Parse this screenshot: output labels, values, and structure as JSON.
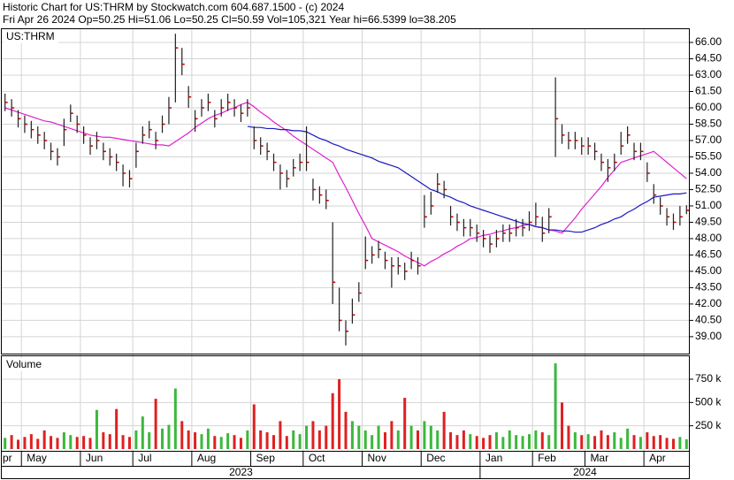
{
  "header": {
    "line1": "Historic Chart for US:THRM by Stockwatch.com 604.687.1500 - (c) 2024",
    "line2": "Fri Apr 26 2024   Op=50.25  Hi=51.06  Lo=50.25  Cl=50.59  Vol=105,321   Year hi=66.5399  lo=38.205"
  },
  "chart_data": {
    "type": "ohlc",
    "symbol_label": "US:THRM",
    "categories": [
      "pr",
      null,
      null,
      "May",
      null,
      null,
      null,
      null,
      null,
      null,
      null,
      null,
      "Jun",
      null,
      null,
      null,
      null,
      null,
      null,
      null,
      "Jul",
      null,
      null,
      null,
      null,
      null,
      null,
      null,
      null,
      "Aug",
      null,
      null,
      null,
      null,
      null,
      null,
      null,
      null,
      "Sep",
      null,
      null,
      null,
      null,
      null,
      null,
      null,
      "Oct",
      null,
      null,
      null,
      null,
      null,
      null,
      null,
      null,
      "Nov",
      null,
      null,
      null,
      null,
      null,
      null,
      null,
      null,
      "Dec",
      null,
      null,
      null,
      null,
      null,
      null,
      null,
      null,
      "Jan",
      null,
      null,
      null,
      null,
      null,
      null,
      null,
      "Feb",
      null,
      null,
      null,
      null,
      null,
      null,
      null,
      "Mar",
      null,
      null,
      null,
      null,
      null,
      null,
      null,
      null,
      "Apr",
      null,
      null,
      null,
      null,
      null,
      null
    ],
    "year_labels": [
      "2023",
      "2024"
    ],
    "high": [
      61.3,
      60.8,
      59.8,
      59.3,
      58.8,
      58.3,
      57.8,
      56.8,
      56.3,
      59,
      60.3,
      59.3,
      58.3,
      57.3,
      57.8,
      56.8,
      56.3,
      55.8,
      54.8,
      54.3,
      56.8,
      58.3,
      58.8,
      57.8,
      59.3,
      61,
      66.8,
      65.5,
      62,
      59.8,
      60.8,
      61.3,
      59.8,
      60.8,
      61.3,
      60.8,
      60.3,
      60.8,
      58.3,
      57.3,
      56.8,
      55.8,
      54.8,
      54.3,
      55.3,
      55.8,
      58.3,
      53.5,
      52.8,
      52.5,
      49.5,
      43.5,
      40.5,
      42.5,
      44,
      48.2,
      47.3,
      47.8,
      46.8,
      46.3,
      46.3,
      45.8,
      46.8,
      46.3,
      52,
      52.3,
      54,
      53.3,
      51,
      50.3,
      49.8,
      49.8,
      49.3,
      48.8,
      48.3,
      48.8,
      49.3,
      49.3,
      49.8,
      49.8,
      50.5,
      51.3,
      50,
      50.8,
      62.8,
      58.5,
      57.8,
      57.8,
      57.3,
      57.3,
      56.8,
      55.8,
      55.3,
      55.8,
      57.8,
      58.3,
      56.8,
      56.8,
      55,
      53,
      51.8,
      50.8,
      50.3,
      51,
      51.06
    ],
    "low": [
      59.7,
      59.2,
      58.2,
      57.7,
      57.2,
      56.7,
      56.2,
      55.2,
      54.7,
      56.5,
      58.7,
      57.7,
      56.7,
      55.7,
      56.2,
      55.2,
      54.7,
      54.2,
      52.8,
      52.7,
      54.5,
      56.7,
      57.2,
      56.2,
      57.7,
      58.5,
      60.5,
      63,
      60,
      57.8,
      59.2,
      59.7,
      58.2,
      59.2,
      59.7,
      59.2,
      58.7,
      59.2,
      56.2,
      55.7,
      55.2,
      54.2,
      52.5,
      52.7,
      53.7,
      54.2,
      54.2,
      51.5,
      51.2,
      50.7,
      42,
      39.5,
      38.2,
      40.2,
      42.2,
      45.2,
      45.7,
      46.2,
      45.2,
      43.5,
      44.7,
      44.2,
      45.2,
      44.7,
      49,
      50.2,
      52.2,
      51.7,
      49.2,
      48.7,
      48.2,
      48.2,
      47.7,
      47.2,
      46.7,
      47.2,
      47.7,
      47.7,
      48.2,
      48.2,
      48.7,
      49.2,
      47.7,
      48.5,
      55.5,
      56.7,
      56.2,
      56.2,
      55.7,
      55.7,
      55.2,
      54.2,
      53.2,
      54.2,
      55.7,
      56.7,
      55.2,
      55.2,
      53.2,
      51.2,
      50.2,
      49.2,
      48.8,
      49.2,
      50.25
    ],
    "close": [
      60.5,
      60,
      59,
      58.5,
      58,
      57.5,
      57,
      56,
      55.5,
      58,
      59.5,
      58.5,
      57.5,
      56.5,
      57,
      56,
      55.5,
      55,
      54,
      53.5,
      56,
      57.5,
      58,
      57,
      58.5,
      60,
      65.5,
      64,
      61,
      59,
      60,
      60.5,
      59,
      60,
      60.5,
      60,
      59.5,
      60,
      57,
      56.5,
      56,
      55,
      54,
      53.5,
      54.5,
      55,
      55,
      52.5,
      52,
      51.5,
      44,
      40.5,
      39.5,
      41,
      43,
      46,
      46.5,
      47,
      46,
      45.5,
      45.5,
      45,
      46,
      45.5,
      50,
      51,
      53,
      52.5,
      50,
      49.5,
      49,
      49,
      48.5,
      48,
      47.5,
      48,
      48.5,
      48.5,
      49,
      49,
      49.5,
      50,
      48.5,
      50,
      59,
      57.5,
      57,
      57,
      56.5,
      56.5,
      56,
      55,
      54.5,
      55,
      56.5,
      57.5,
      56,
      56,
      54,
      52,
      51,
      50,
      49.5,
      50,
      50.59
    ],
    "bar_color": "#202020",
    "close_color": "#c00000",
    "moving_averages": [
      {
        "color": "#e020d0",
        "values": [
          60,
          59.8,
          59.6,
          59.4,
          59.2,
          59.0,
          58.8,
          58.7,
          58.5,
          58.3,
          58.1,
          57.9,
          57.7,
          57.5,
          57.4,
          57.3,
          57.3,
          57.2,
          57.1,
          57.0,
          56.9,
          56.8,
          56.7,
          56.6,
          56.6,
          56.5,
          56.9,
          57.3,
          57.7,
          58.2,
          58.6,
          59.0,
          59.3,
          59.5,
          59.8,
          60.0,
          60.3,
          60.5,
          60.1,
          59.6,
          59.2,
          58.7,
          58.3,
          57.9,
          57.4,
          57.0,
          56.6,
          56.2,
          55.8,
          55.4,
          55.0,
          53.8,
          52.7,
          51.5,
          50.3,
          49.2,
          48.0,
          47.7,
          47.4,
          47.1,
          46.8,
          46.4,
          46.1,
          45.8,
          45.5,
          45.9,
          46.2,
          46.6,
          46.9,
          47.3,
          47.6,
          48.0,
          48.1,
          48.3,
          48.4,
          48.6,
          48.7,
          48.9,
          49.0,
          49.2,
          49.3,
          49.1,
          49.0,
          48.8,
          48.7,
          48.5,
          49.2,
          49.9,
          50.7,
          51.4,
          52.1,
          52.8,
          53.6,
          54.3,
          55.0,
          55.2,
          55.4,
          55.6,
          55.8,
          56.0,
          55.5,
          55.0,
          54.5,
          54.0,
          53.5
        ]
      },
      {
        "color": "#1818c0",
        "values": [
          null,
          null,
          null,
          null,
          null,
          null,
          null,
          null,
          null,
          null,
          null,
          null,
          null,
          null,
          null,
          null,
          null,
          null,
          null,
          null,
          null,
          null,
          null,
          null,
          null,
          null,
          null,
          null,
          null,
          null,
          null,
          null,
          null,
          null,
          null,
          null,
          null,
          58.3,
          58.2,
          58.2,
          58.1,
          58.1,
          58.0,
          58.0,
          57.9,
          57.9,
          57.8,
          57.5,
          57.2,
          57.0,
          56.7,
          56.5,
          56.2,
          56.0,
          55.8,
          55.6,
          55.4,
          55.1,
          54.9,
          54.7,
          54.5,
          54.1,
          53.7,
          53.3,
          52.9,
          52.5,
          52.3,
          52.0,
          51.8,
          51.5,
          51.3,
          51.0,
          50.8,
          50.6,
          50.4,
          50.2,
          50.0,
          49.8,
          49.6,
          49.4,
          49.3,
          49.1,
          49.0,
          48.8,
          48.8,
          48.7,
          48.7,
          48.6,
          48.6,
          48.8,
          49.0,
          49.3,
          49.5,
          49.8,
          50.0,
          50.4,
          50.7,
          51.1,
          51.4,
          51.8,
          51.9,
          52.0,
          52.1,
          52.1,
          52.2
        ]
      }
    ],
    "ylim": [
      37.45,
      67.3
    ],
    "yticks": [
      {
        "value": 39,
        "label": "39.00"
      },
      {
        "value": 40.5,
        "label": "40.50"
      },
      {
        "value": 42,
        "label": "42.00"
      },
      {
        "value": 43.5,
        "label": "43.50"
      },
      {
        "value": 45,
        "label": "45.00"
      },
      {
        "value": 46.5,
        "label": "46.50"
      },
      {
        "value": 48,
        "label": "48.00"
      },
      {
        "value": 49.5,
        "label": "49.50"
      },
      {
        "value": 51,
        "label": "51.00"
      },
      {
        "value": 52.5,
        "label": "52.50"
      },
      {
        "value": 54,
        "label": "54.00"
      },
      {
        "value": 55.5,
        "label": "55.50"
      },
      {
        "value": 57,
        "label": "57.00"
      },
      {
        "value": 58.5,
        "label": "58.50"
      },
      {
        "value": 60,
        "label": "60.00"
      },
      {
        "value": 61.5,
        "label": "61.50"
      },
      {
        "value": 63,
        "label": "63.00"
      },
      {
        "value": 64.5,
        "label": "64.50"
      },
      {
        "value": 66,
        "label": "66.00"
      }
    ],
    "grid": true,
    "volume": {
      "label": "Volume",
      "up_color": "#3cb83c",
      "down_color": "#e02020",
      "values": [
        120000,
        150000,
        100000,
        130000,
        160000,
        110000,
        200000,
        140000,
        120000,
        180000,
        150000,
        130000,
        140000,
        120000,
        420000,
        180000,
        160000,
        430000,
        150000,
        130000,
        200000,
        350000,
        180000,
        540000,
        220000,
        260000,
        650000,
        300000,
        200000,
        180000,
        160000,
        220000,
        140000,
        130000,
        170000,
        150000,
        120000,
        200000,
        480000,
        200000,
        180000,
        150000,
        300000,
        140000,
        200000,
        160000,
        250000,
        300000,
        200000,
        250000,
        600000,
        750000,
        400000,
        300000,
        250000,
        200000,
        150000,
        250000,
        180000,
        300000,
        200000,
        550000,
        250000,
        200000,
        300000,
        250000,
        200000,
        400000,
        180000,
        150000,
        200000,
        160000,
        140000,
        120000,
        150000,
        180000,
        130000,
        200000,
        150000,
        140000,
        160000,
        200000,
        180000,
        150000,
        920000,
        500000,
        250000,
        180000,
        150000,
        160000,
        140000,
        200000,
        150000,
        180000,
        120000,
        220000,
        150000,
        130000,
        180000,
        140000,
        150000,
        120000,
        110000,
        130000,
        105321
      ],
      "ylim": [
        0,
        1006000
      ],
      "yticks": [
        {
          "value": 250000,
          "label": "250 k"
        },
        {
          "value": 500000,
          "label": "500 k"
        },
        {
          "value": 750000,
          "label": "750 k"
        }
      ]
    }
  }
}
